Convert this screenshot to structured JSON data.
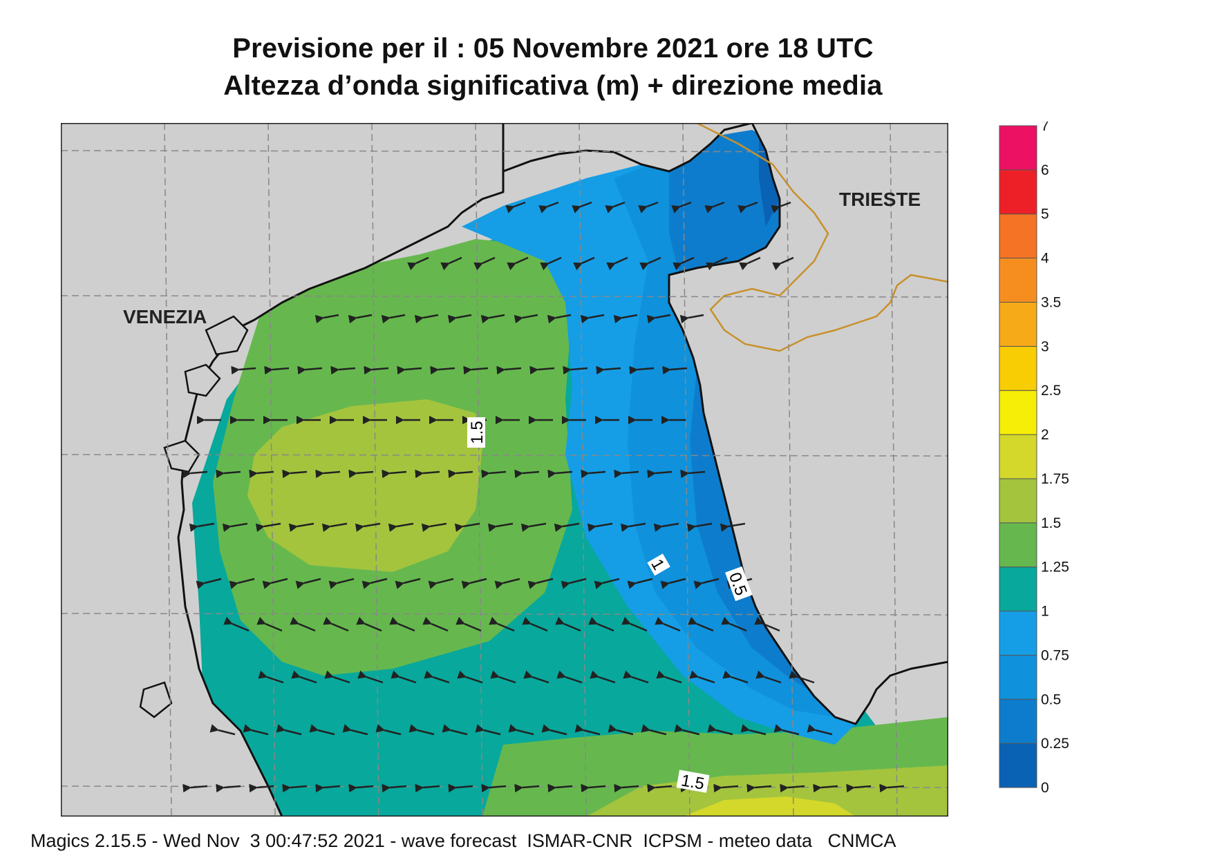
{
  "header": {
    "title_line1": "Previsione per il  :  05 Novembre  2021   ore 18 UTC",
    "title_line2": "Altezza d’onda significativa (m) + direzione media"
  },
  "map": {
    "cities": [
      {
        "name": "VENEZIA"
      },
      {
        "name": "TRIESTE"
      }
    ],
    "contour_labels": [
      "1.5",
      "1",
      "0.5",
      "1.5"
    ],
    "colors": {
      "land": "#cfcfcf",
      "coast": "#111111",
      "border": "#c8902a",
      "grid": "#888888",
      "arrow": "#222222"
    }
  },
  "legend": {
    "levels": [
      "0",
      "0.25",
      "0.5",
      "0.75",
      "1",
      "1.25",
      "1.5",
      "1.75",
      "2",
      "2.5",
      "3",
      "3.5",
      "4",
      "5",
      "6",
      "7"
    ],
    "colors": [
      "#0a62b4",
      "#0e7ccc",
      "#0f91dc",
      "#159ee6",
      "#08a89c",
      "#66b84e",
      "#a4c43e",
      "#d4d82a",
      "#f6ee06",
      "#f9cd04",
      "#f7aa17",
      "#f68e1f",
      "#f47324",
      "#ed2027",
      "#ed1164"
    ]
  },
  "footer": {
    "text": "Magics 2.15.5 - Wed Nov  3 00:47:52 2021 - wave forecast  ISMAR-CNR  ICPSM - meteo data   CNMCA"
  }
}
